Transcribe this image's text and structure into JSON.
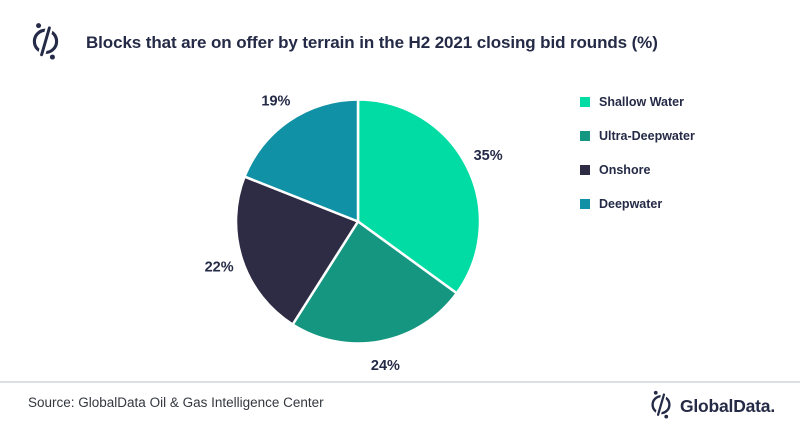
{
  "header": {
    "title": "Blocks that are on offer by terrain in the H2 2021 closing bid rounds (%)"
  },
  "chart_data": {
    "type": "pie",
    "title": "Blocks that are on offer by terrain in the H2 2021 closing bid rounds (%)",
    "categories": [
      "Shallow Water",
      "Ultra-Deepwater",
      "Onshore",
      "Deepwater"
    ],
    "values": [
      35,
      24,
      22,
      19
    ],
    "labels": [
      "35%",
      "24%",
      "22%",
      "19%"
    ],
    "unit": "%",
    "colors": [
      "#00DCA3",
      "#159680",
      "#2E2B44",
      "#1191A5"
    ],
    "start_angle": "top",
    "direction": "clockwise",
    "legend_position": "right",
    "slice_border_color": "#FFFFFF"
  },
  "footer": {
    "source": "Source: GlobalData Oil & Gas Intelligence Center",
    "brand": "GlobalData."
  },
  "colors": {
    "text_navy": "#252B47",
    "source_text": "#33373F",
    "separator": "#DCDFE3",
    "background": "#FFFFFF"
  },
  "icons": {
    "brand_icon": "globaldata-percent-circle-icon"
  }
}
